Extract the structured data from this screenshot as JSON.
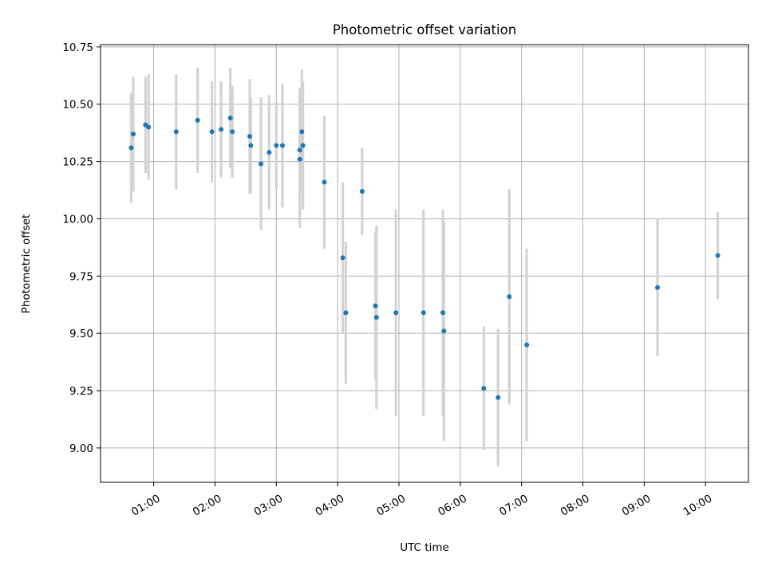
{
  "chart_data": {
    "type": "scatter",
    "title": "Photometric offset variation",
    "xlabel": "UTC time",
    "ylabel": "Photometric offset",
    "xlim": [
      "00:08",
      "10:42"
    ],
    "ylim": [
      8.85,
      10.76
    ],
    "grid": true,
    "x_ticks": [
      "01:00",
      "02:00",
      "03:00",
      "04:00",
      "05:00",
      "06:00",
      "07:00",
      "08:00",
      "09:00",
      "10:00"
    ],
    "y_ticks": [
      "9.00",
      "9.25",
      "9.50",
      "9.75",
      "10.00",
      "10.25",
      "10.50",
      "10.75"
    ],
    "colors": {
      "point": "#1f77b4",
      "errorbar": "#d3d3d3",
      "grid": "#b0b0b0"
    },
    "series": [
      {
        "x": [
          "00:38",
          "00:40",
          "00:52",
          "00:55",
          "01:22",
          "01:43",
          "01:57",
          "02:06",
          "02:15",
          "02:17",
          "02:34",
          "02:35",
          "02:45",
          "02:53",
          "03:00",
          "03:06",
          "03:23",
          "03:23",
          "03:25",
          "03:26",
          "03:47",
          "04:05",
          "04:08",
          "04:24",
          "04:37",
          "04:38",
          "04:57",
          "05:24",
          "05:43",
          "05:44",
          "06:23",
          "06:37",
          "06:48",
          "07:05",
          "09:13",
          "10:12"
        ],
        "y": [
          10.31,
          10.37,
          10.41,
          10.4,
          10.38,
          10.43,
          10.38,
          10.39,
          10.44,
          10.38,
          10.36,
          10.32,
          10.24,
          10.29,
          10.32,
          10.32,
          10.3,
          10.26,
          10.38,
          10.32,
          10.16,
          9.83,
          9.59,
          10.12,
          9.62,
          9.57,
          9.59,
          9.59,
          9.59,
          9.51,
          9.26,
          9.22,
          9.66,
          9.45,
          9.7,
          9.84
        ],
        "yerr": [
          0.24,
          0.25,
          0.21,
          0.23,
          0.25,
          0.23,
          0.22,
          0.21,
          0.22,
          0.2,
          0.25,
          0.21,
          0.29,
          0.25,
          0.19,
          0.27,
          0.27,
          0.3,
          0.27,
          0.28,
          0.29,
          0.33,
          0.31,
          0.19,
          0.32,
          0.4,
          0.45,
          0.45,
          0.45,
          0.48,
          0.27,
          0.3,
          0.47,
          0.42,
          0.3,
          0.19
        ]
      }
    ]
  }
}
